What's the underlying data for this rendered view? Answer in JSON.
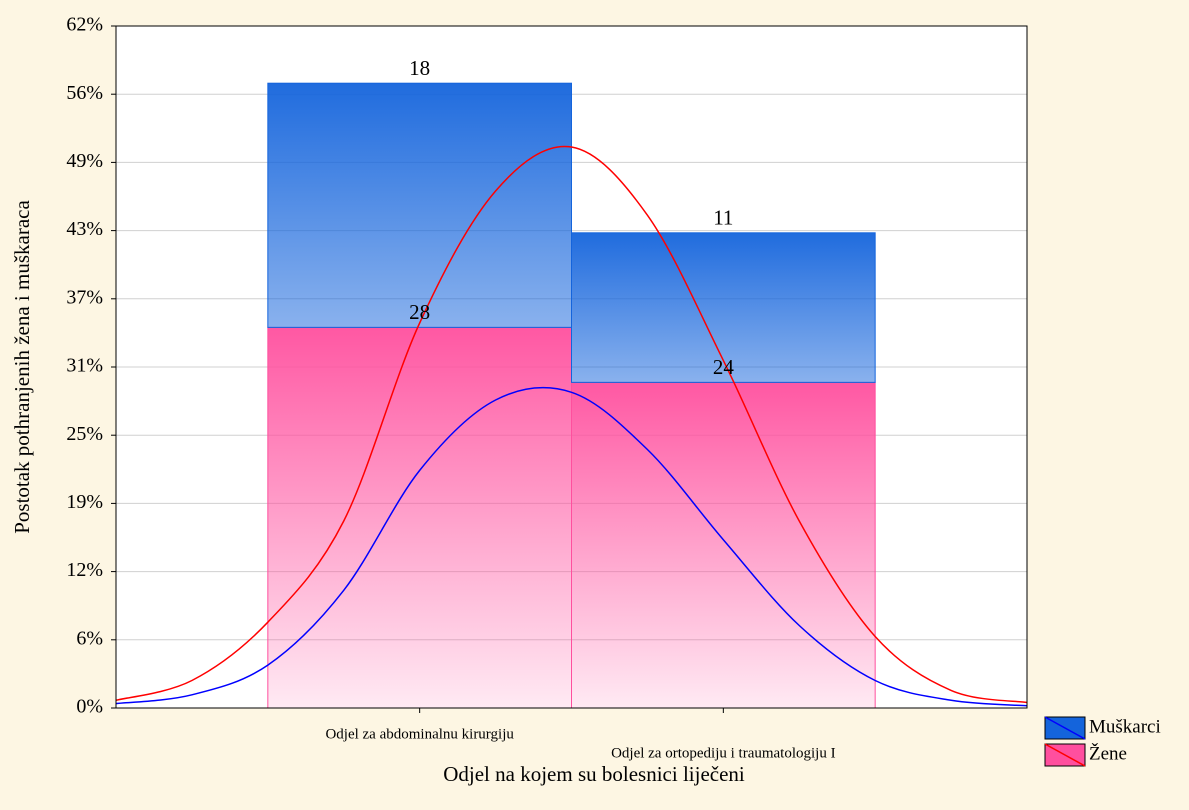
{
  "chart_data": {
    "type": "bar",
    "x_label": "Odjel na kojem su bolesnici liječeni",
    "y_label": "Postotak pothranjenih žena i muškaraca",
    "categories": [
      "Odjel za abdominalnu kirurgiju",
      "Odjel za ortopediju i traumatologiju I"
    ],
    "series": [
      {
        "name": "Muškarci",
        "color": "#1464dc",
        "values": [
          22.2,
          13.6
        ],
        "counts": [
          18,
          11
        ]
      },
      {
        "name": "Žene",
        "color": "#ff4f9e",
        "values": [
          34.6,
          29.6
        ],
        "counts": [
          28,
          24
        ]
      }
    ],
    "curves": [
      {
        "color": "#ff0000",
        "x": [
          -1,
          -0.75,
          -0.5,
          -0.25,
          0,
          0.25,
          0.5,
          0.75,
          1,
          1.25,
          1.5,
          1.75,
          2
        ],
        "values": [
          0.7,
          2.5,
          7.8,
          17,
          35,
          47,
          51,
          44.8,
          31.6,
          17,
          6.5,
          1.6,
          0.5
        ]
      },
      {
        "color": "#0000ff",
        "x": [
          -1,
          -0.75,
          -0.5,
          -0.25,
          0,
          0.25,
          0.5,
          0.75,
          1,
          1.25,
          1.5,
          1.75,
          2
        ],
        "values": [
          0.4,
          1.2,
          3.9,
          10.7,
          21.6,
          28,
          28.7,
          23.5,
          15.3,
          7.5,
          2.5,
          0.7,
          0.2
        ]
      }
    ],
    "xlim": [
      -1,
      2
    ],
    "ylim": [
      0,
      62
    ],
    "yticks": [
      {
        "value": 0,
        "label": "0%"
      },
      {
        "value": 6.2,
        "label": "6%"
      },
      {
        "value": 12.4,
        "label": "12%"
      },
      {
        "value": 18.6,
        "label": "19%"
      },
      {
        "value": 24.8,
        "label": "25%"
      },
      {
        "value": 31,
        "label": "31%"
      },
      {
        "value": 37.2,
        "label": "37%"
      },
      {
        "value": 43.4,
        "label": "43%"
      },
      {
        "value": 49.6,
        "label": "49%"
      },
      {
        "value": 55.8,
        "label": "56%"
      },
      {
        "value": 62,
        "label": "62%"
      }
    ],
    "grid": true,
    "legend": "bottom-right"
  }
}
